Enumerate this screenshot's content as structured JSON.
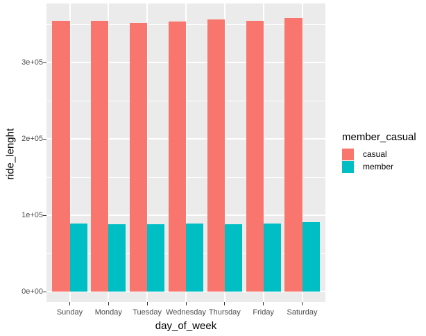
{
  "chart_data": {
    "type": "bar",
    "grouping": "dodge",
    "title": "",
    "xlabel": "day_of_week",
    "ylabel": "ride_lenght",
    "categories": [
      "Sunday",
      "Monday",
      "Tuesday",
      "Wednesday",
      "Thursday",
      "Friday",
      "Saturday"
    ],
    "series": [
      {
        "name": "casual",
        "color": "#F8766D",
        "values": [
          354500,
          355000,
          352000,
          354000,
          356500,
          354500,
          358500
        ]
      },
      {
        "name": "member",
        "color": "#00BFC4",
        "values": [
          89000,
          88000,
          88000,
          89000,
          88500,
          89000,
          90500
        ]
      }
    ],
    "y_axis": {
      "ticks": [
        {
          "value": 0,
          "label": "0e+00"
        },
        {
          "value": 100000,
          "label": "1e+05"
        },
        {
          "value": 200000,
          "label": "2e+05"
        },
        {
          "value": 300000,
          "label": "3e+05"
        }
      ],
      "minor_ticks": [
        50000,
        150000,
        250000,
        350000
      ],
      "range": [
        -13600,
        377300
      ]
    },
    "x_axis": {
      "type": "discrete"
    },
    "legend": {
      "title": "member_casual",
      "position": "right",
      "items": [
        {
          "label": "casual",
          "color": "#F8766D"
        },
        {
          "label": "member",
          "color": "#00BFC4"
        }
      ]
    },
    "style": {
      "panel_bg": "#EBEBEB",
      "grid_color": "#FFFFFF",
      "axis_text_color": "#4D4D4D",
      "tick_mark_color": "#333333",
      "axis_title_color": "#000000"
    }
  }
}
